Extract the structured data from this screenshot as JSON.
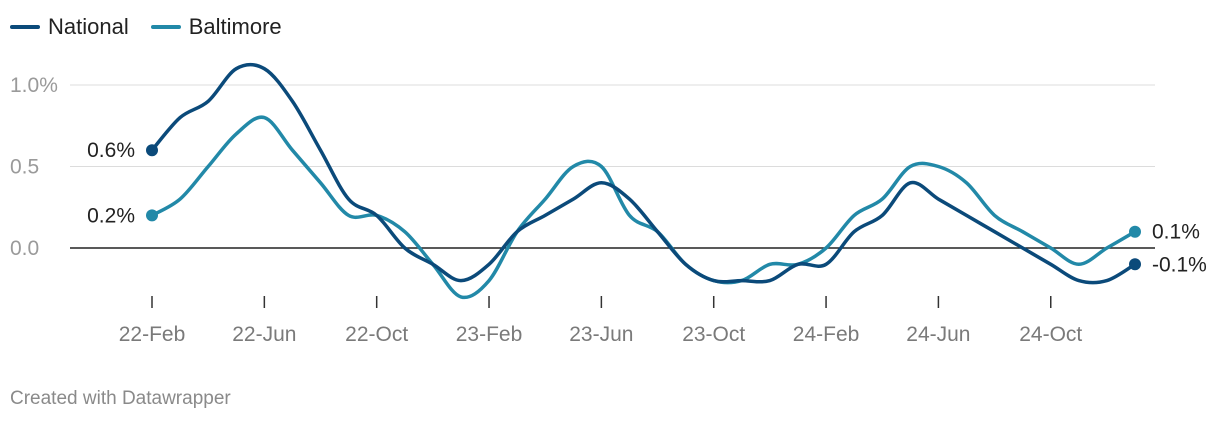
{
  "legend": [
    {
      "name": "National",
      "color": "#0b4a7a"
    },
    {
      "name": "Baltimore",
      "color": "#2289a8"
    }
  ],
  "footer": "Created with Datawrapper",
  "chart_data": {
    "type": "line",
    "ylim": [
      -0.25,
      1.1
    ],
    "y_ticks": [
      {
        "value": 1.0,
        "label": "1.0%"
      },
      {
        "value": 0.5,
        "label": "0.5"
      },
      {
        "value": 0.0,
        "label": "0.0"
      }
    ],
    "x_ticks": [
      {
        "x": 0,
        "label": "22-Feb"
      },
      {
        "x": 4,
        "label": "22-Jun"
      },
      {
        "x": 8,
        "label": "22-Oct"
      },
      {
        "x": 12,
        "label": "23-Feb"
      },
      {
        "x": 16,
        "label": "23-Jun"
      },
      {
        "x": 20,
        "label": "23-Oct"
      },
      {
        "x": 24,
        "label": "24-Feb"
      },
      {
        "x": 28,
        "label": "24-Jun"
      },
      {
        "x": 32,
        "label": "24-Oct"
      }
    ],
    "x_range": [
      0,
      35
    ],
    "series": [
      {
        "name": "National",
        "color": "#0b4a7a",
        "values": [
          0.6,
          0.8,
          0.9,
          1.1,
          1.1,
          0.9,
          0.6,
          0.3,
          0.2,
          0.0,
          -0.1,
          -0.2,
          -0.1,
          0.1,
          0.2,
          0.3,
          0.4,
          0.3,
          0.1,
          -0.1,
          -0.2,
          -0.2,
          -0.2,
          -0.1,
          -0.1,
          0.1,
          0.2,
          0.4,
          0.3,
          0.2,
          0.1,
          0.0,
          -0.1,
          -0.2,
          -0.2,
          -0.1
        ],
        "start_label": "0.6%",
        "end_label": "-0.1%"
      },
      {
        "name": "Baltimore",
        "color": "#2289a8",
        "values": [
          0.2,
          0.3,
          0.5,
          0.7,
          0.8,
          0.6,
          0.4,
          0.2,
          0.2,
          0.1,
          -0.1,
          -0.3,
          -0.2,
          0.1,
          0.3,
          0.5,
          0.5,
          0.2,
          0.1,
          -0.1,
          -0.2,
          -0.2,
          -0.1,
          -0.1,
          0.0,
          0.2,
          0.3,
          0.5,
          0.5,
          0.4,
          0.2,
          0.1,
          0.0,
          -0.1,
          0.0,
          0.1
        ],
        "start_label": "0.2%",
        "end_label": "0.1%"
      }
    ]
  }
}
